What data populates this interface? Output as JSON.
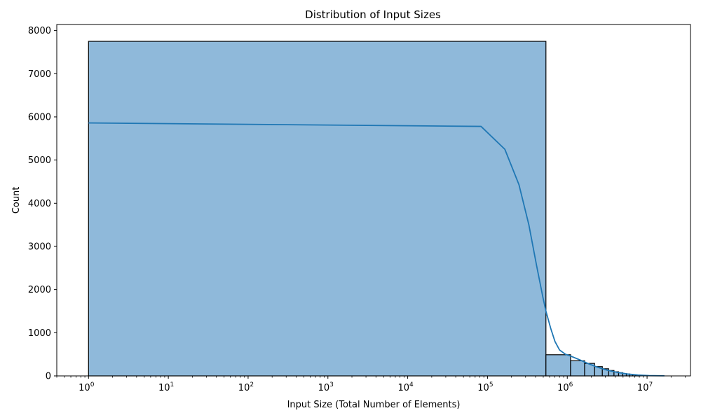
{
  "chart_data": {
    "type": "bar",
    "title": "Distribution of Input Sizes",
    "xlabel": "Input Size (Total Number of Elements)",
    "ylabel": "Count",
    "xscale": "log",
    "xlim": [
      0.4,
      35000000
    ],
    "ylim": [
      0,
      8140
    ],
    "grid": false,
    "bar_color": "#8fb9da",
    "line_color": "#1f77b4",
    "y_ticks": [
      {
        "value": 0,
        "label": "0"
      },
      {
        "value": 1000,
        "label": "1000"
      },
      {
        "value": 2000,
        "label": "2000"
      },
      {
        "value": 3000,
        "label": "3000"
      },
      {
        "value": 4000,
        "label": "4000"
      },
      {
        "value": 5000,
        "label": "5000"
      },
      {
        "value": 6000,
        "label": "6000"
      },
      {
        "value": 7000,
        "label": "7000"
      },
      {
        "value": 8000,
        "label": "8000"
      }
    ],
    "x_ticks": [
      {
        "value": 1,
        "base": "10",
        "exp": "0"
      },
      {
        "value": 10,
        "base": "10",
        "exp": "1"
      },
      {
        "value": 100,
        "base": "10",
        "exp": "2"
      },
      {
        "value": 1000,
        "base": "10",
        "exp": "3"
      },
      {
        "value": 10000,
        "base": "10",
        "exp": "4"
      },
      {
        "value": 100000,
        "base": "10",
        "exp": "5"
      },
      {
        "value": 1000000,
        "base": "10",
        "exp": "6"
      },
      {
        "value": 10000000,
        "base": "10",
        "exp": "7"
      }
    ],
    "histogram_bins": [
      {
        "x0": 1,
        "x1": 540000,
        "count": 7750
      },
      {
        "x0": 540000,
        "x1": 1100000,
        "count": 490
      },
      {
        "x0": 1100000,
        "x1": 1650000,
        "count": 350
      },
      {
        "x0": 1650000,
        "x1": 2200000,
        "count": 290
      },
      {
        "x0": 2200000,
        "x1": 2750000,
        "count": 215
      },
      {
        "x0": 2750000,
        "x1": 3300000,
        "count": 165
      },
      {
        "x0": 3300000,
        "x1": 3850000,
        "count": 125
      },
      {
        "x0": 3850000,
        "x1": 4400000,
        "count": 95
      },
      {
        "x0": 4400000,
        "x1": 4950000,
        "count": 75
      },
      {
        "x0": 4950000,
        "x1": 5500000,
        "count": 55
      },
      {
        "x0": 5500000,
        "x1": 6050000,
        "count": 45
      },
      {
        "x0": 6050000,
        "x1": 6600000,
        "count": 35
      },
      {
        "x0": 6600000,
        "x1": 7150000,
        "count": 25
      },
      {
        "x0": 7150000,
        "x1": 7700000,
        "count": 18
      },
      {
        "x0": 7700000,
        "x1": 8250000,
        "count": 12
      }
    ],
    "kde_curve": [
      {
        "x": 1,
        "y": 5860
      },
      {
        "x": 83000,
        "y": 5780
      },
      {
        "x": 165000,
        "y": 5250
      },
      {
        "x": 248000,
        "y": 4430
      },
      {
        "x": 330000,
        "y": 3500
      },
      {
        "x": 413000,
        "y": 2550
      },
      {
        "x": 495000,
        "y": 1820
      },
      {
        "x": 540000,
        "y": 1500
      },
      {
        "x": 620000,
        "y": 1100
      },
      {
        "x": 700000,
        "y": 800
      },
      {
        "x": 800000,
        "y": 600
      },
      {
        "x": 950000,
        "y": 500
      },
      {
        "x": 1100000,
        "y": 460
      },
      {
        "x": 1400000,
        "y": 380
      },
      {
        "x": 1800000,
        "y": 290
      },
      {
        "x": 2400000,
        "y": 200
      },
      {
        "x": 3200000,
        "y": 130
      },
      {
        "x": 4300000,
        "y": 80
      },
      {
        "x": 5700000,
        "y": 45
      },
      {
        "x": 7700000,
        "y": 20
      },
      {
        "x": 10500000,
        "y": 7
      },
      {
        "x": 16500000,
        "y": 2
      }
    ]
  }
}
